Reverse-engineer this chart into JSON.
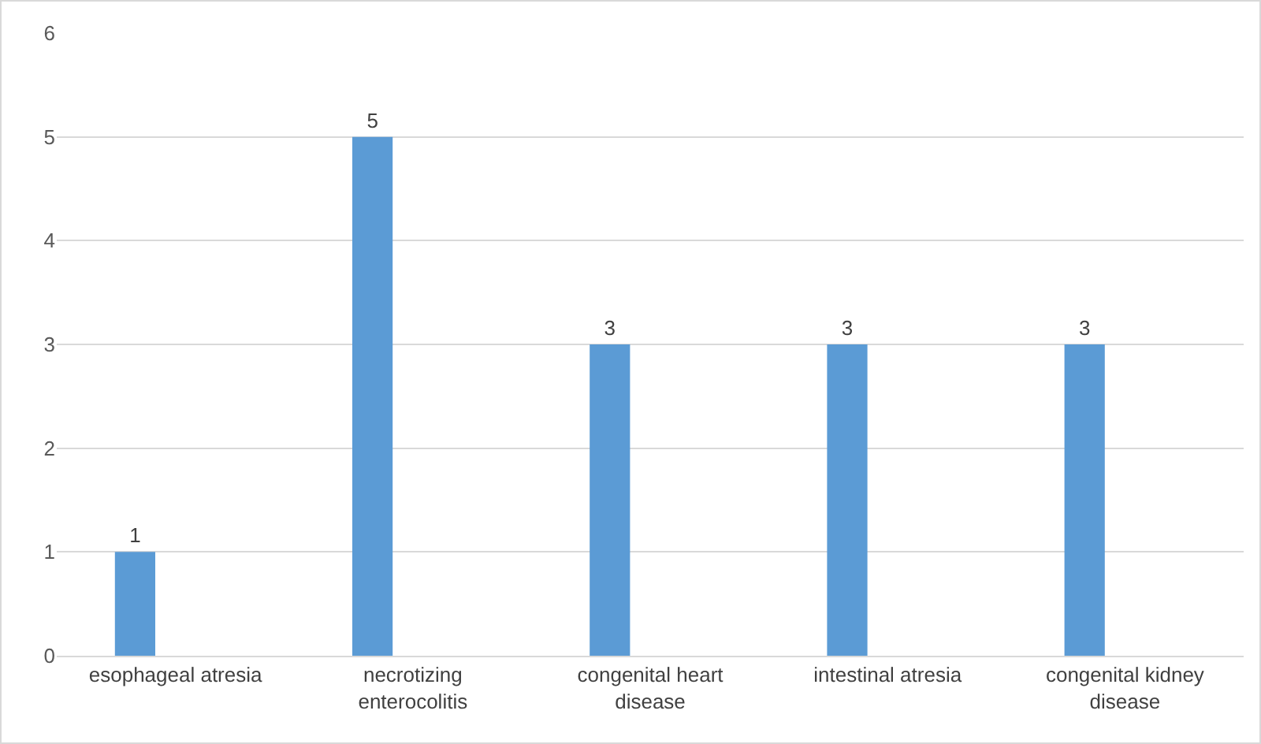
{
  "chart_data": {
    "type": "bar",
    "categories": [
      "esophageal atresia",
      "necrotizing enterocolitis",
      "congenital heart disease",
      "intestinal atresia",
      "congenital kidney disease"
    ],
    "values": [
      1,
      5,
      3,
      3,
      3
    ],
    "color": "#5b9bd5",
    "ylim": [
      0,
      6
    ],
    "yticks": [
      0,
      1,
      2,
      3,
      4,
      5,
      6
    ],
    "grid": "y",
    "data_labels": true
  }
}
